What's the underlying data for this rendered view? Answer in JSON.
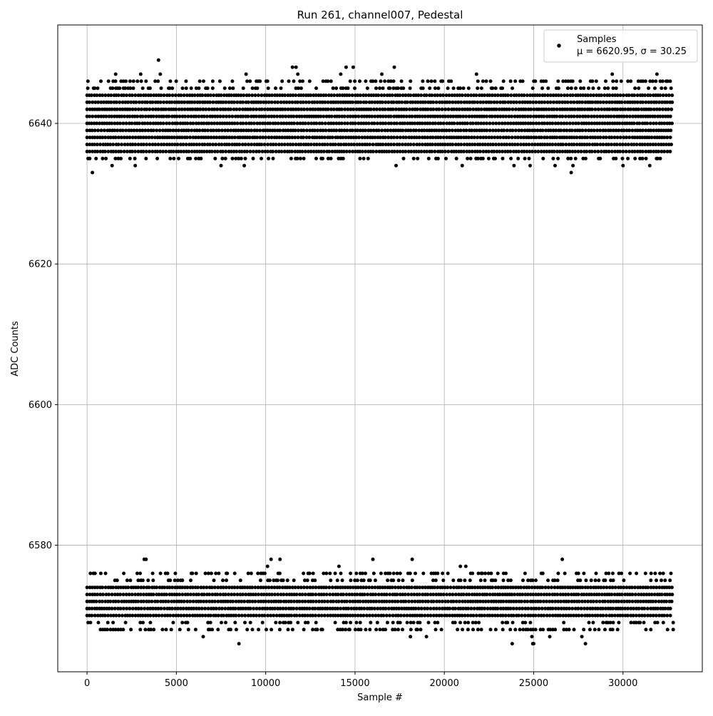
{
  "chart_data": {
    "type": "scatter",
    "title": "Run 261, channel007, Pedestal",
    "xlabel": "Sample #",
    "ylabel": "ADC Counts",
    "xlim": [
      -1640,
      34440
    ],
    "ylim": [
      6562.0,
      6654.0
    ],
    "x_ticks": [
      0,
      5000,
      10000,
      15000,
      20000,
      25000,
      30000
    ],
    "y_ticks": [
      6580,
      6600,
      6620,
      6640
    ],
    "grid": true,
    "legend": {
      "placement": "top-right",
      "entries": [
        {
          "label": "Samples",
          "sublabel": "μ = 6620.95, σ = 30.25",
          "marker": "dot"
        }
      ]
    },
    "marker_color": "#000000",
    "stats": {
      "mu": 6620.95,
      "sigma": 30.25
    },
    "x_range": [
      0,
      32767
    ],
    "bands": [
      {
        "name": "upper",
        "dense_levels": [
          6636,
          6637,
          6638,
          6639,
          6640,
          6641,
          6642,
          6643,
          6644
        ],
        "sparse_levels": [
          6635,
          6645,
          6646
        ],
        "outliers": [
          [
            300,
            6633
          ],
          [
            2700,
            6634
          ],
          [
            1400,
            6634
          ],
          [
            4000,
            6649
          ],
          [
            4100,
            6647
          ],
          [
            3000,
            6647
          ],
          [
            1600,
            6647
          ],
          [
            7500,
            6634
          ],
          [
            8800,
            6634
          ],
          [
            8900,
            6647
          ],
          [
            11500,
            6648
          ],
          [
            11700,
            6648
          ],
          [
            11800,
            6647
          ],
          [
            14200,
            6647
          ],
          [
            14500,
            6648
          ],
          [
            14900,
            6648
          ],
          [
            16500,
            6647
          ],
          [
            17200,
            6648
          ],
          [
            17300,
            6634
          ],
          [
            21000,
            6634
          ],
          [
            21800,
            6647
          ],
          [
            23900,
            6634
          ],
          [
            24800,
            6634
          ],
          [
            26200,
            6634
          ],
          [
            27100,
            6633
          ],
          [
            27200,
            6634
          ],
          [
            29400,
            6647
          ],
          [
            31500,
            6634
          ],
          [
            31900,
            6647
          ],
          [
            30000,
            6634
          ]
        ]
      },
      {
        "name": "lower",
        "dense_levels": [
          6570,
          6571,
          6572,
          6573,
          6574
        ],
        "sparse_levels": [
          6569,
          6575,
          6576,
          6568
        ],
        "outliers": [
          [
            3200,
            6578
          ],
          [
            3300,
            6578
          ],
          [
            6500,
            6567
          ],
          [
            8500,
            6566
          ],
          [
            10100,
            6577
          ],
          [
            10300,
            6578
          ],
          [
            10800,
            6578
          ],
          [
            14100,
            6577
          ],
          [
            16000,
            6578
          ],
          [
            18200,
            6578
          ],
          [
            18100,
            6567
          ],
          [
            19000,
            6567
          ],
          [
            20900,
            6577
          ],
          [
            21200,
            6577
          ],
          [
            23800,
            6566
          ],
          [
            24900,
            6567
          ],
          [
            25000,
            6566
          ],
          [
            24950,
            6566
          ],
          [
            26600,
            6578
          ],
          [
            25900,
            6567
          ],
          [
            27700,
            6567
          ],
          [
            27900,
            6566
          ],
          [
            29700,
            6568
          ]
        ]
      }
    ]
  }
}
